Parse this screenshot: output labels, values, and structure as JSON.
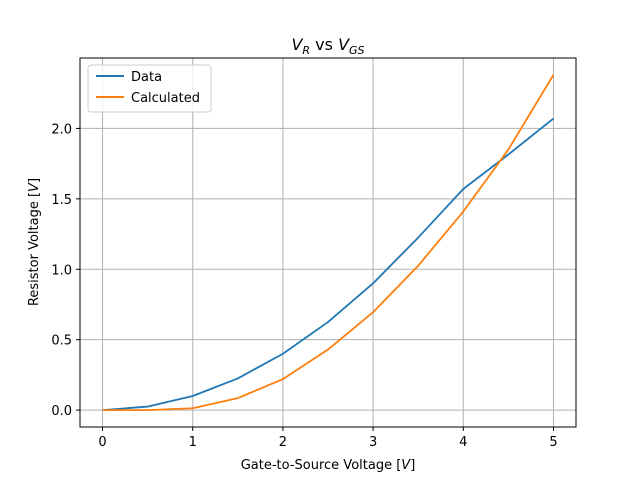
{
  "chart_data": {
    "type": "line",
    "title": {
      "base_1": "V",
      "sub_1": "R",
      "mid": " vs ",
      "base_2": "V",
      "sub_2": "GS"
    },
    "xlabel": {
      "text": "Gate-to-Source Voltage [",
      "var": "V",
      "end": "]"
    },
    "ylabel": {
      "text": "Resistor Voltage [",
      "var": "V",
      "end": "]"
    },
    "x": [
      0,
      0.5,
      1,
      1.5,
      2,
      2.5,
      3,
      3.5,
      4,
      4.5,
      5
    ],
    "xticks": [
      0,
      1,
      2,
      3,
      4,
      5
    ],
    "yticks": [
      0.0,
      0.5,
      1.0,
      1.5,
      2.0
    ],
    "xtick_labels": [
      "0",
      "1",
      "2",
      "3",
      "4",
      "5"
    ],
    "ytick_labels": [
      "0.0",
      "0.5",
      "1.0",
      "1.5",
      "2.0"
    ],
    "xlim": [
      -0.25,
      5.25
    ],
    "ylim": [
      -0.12,
      2.5
    ],
    "grid": true,
    "legend_position": "top-left",
    "series": [
      {
        "name": "Data",
        "color": "#1f77b4",
        "values": [
          0.0,
          0.025,
          0.1,
          0.225,
          0.4,
          0.625,
          0.9,
          1.225,
          1.57,
          1.815,
          2.07
        ]
      },
      {
        "name": "Calculated",
        "color": "#ff7f0e",
        "values": [
          0.0,
          0.0,
          0.013,
          0.085,
          0.22,
          0.43,
          0.695,
          1.025,
          1.41,
          1.85,
          2.38
        ]
      }
    ]
  }
}
